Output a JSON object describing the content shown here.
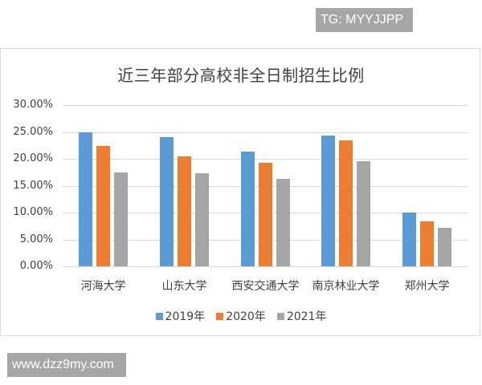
{
  "watermarks": {
    "top": "TG: MYYJJPP",
    "bottom": "www.dzz9my.com"
  },
  "colors": {
    "2019": "#5B9BD5",
    "2020": "#ED7D31",
    "2021": "#A5A5A5"
  },
  "chart_data": {
    "type": "bar",
    "title": "近三年部分高校非全日制招生比例",
    "xlabel": "",
    "ylabel": "",
    "ylim": [
      0,
      0.3
    ],
    "yticks": [
      "0.00%",
      "5.00%",
      "10.00%",
      "15.00%",
      "20.00%",
      "25.00%",
      "30.00%"
    ],
    "grid": true,
    "legend_position": "bottom",
    "categories": [
      "河海大学",
      "山东大学",
      "西安交通大学",
      "南京林业大学",
      "郑州大学"
    ],
    "series": [
      {
        "name": "2019年",
        "color": "#5B9BD5",
        "values": [
          0.249,
          0.241,
          0.214,
          0.244,
          0.1
        ]
      },
      {
        "name": "2020年",
        "color": "#ED7D31",
        "values": [
          0.224,
          0.205,
          0.192,
          0.235,
          0.084
        ]
      },
      {
        "name": "2021年",
        "color": "#A5A5A5",
        "values": [
          0.174,
          0.173,
          0.163,
          0.196,
          0.072
        ]
      }
    ]
  }
}
